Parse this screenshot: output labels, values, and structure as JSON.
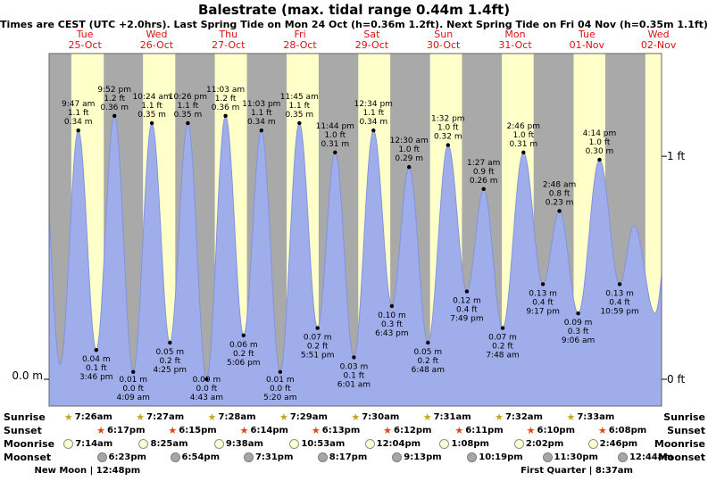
{
  "title": "Balestrate (max. tidal range 0.44m 1.4ft)",
  "subtitle": "Times are CEST (UTC +2.0hrs). Last Spring Tide on Mon 24 Oct (h=0.36m 1.2ft). Next Spring Tide on Fri 04 Nov (h=0.35m 1.1ft)",
  "axis": {
    "left": "0.0 m",
    "right_top": "1 ft",
    "right_bottom": "0 ft"
  },
  "colors": {
    "day_band": "#ffffc9",
    "night_band": "#a9a9a9",
    "tide_fill": "#9fadea",
    "tide_stroke": "#8095dd",
    "date_red": "#dd1111",
    "text": "#000000"
  },
  "days": [
    {
      "weekday": "Tue",
      "date": "25-Oct"
    },
    {
      "weekday": "Wed",
      "date": "26-Oct"
    },
    {
      "weekday": "Thu",
      "date": "27-Oct"
    },
    {
      "weekday": "Fri",
      "date": "28-Oct"
    },
    {
      "weekday": "Sat",
      "date": "29-Oct"
    },
    {
      "weekday": "Sun",
      "date": "30-Oct"
    },
    {
      "weekday": "Mon",
      "date": "31-Oct"
    },
    {
      "weekday": "Tue",
      "date": "01-Nov"
    },
    {
      "weekday": "Wed",
      "date": "02-Nov"
    }
  ],
  "chart_data": {
    "type": "area",
    "title": "Balestrate tide height curve",
    "ylabel_m": "0.0 m",
    "ylim_m": [
      0,
      0.44
    ],
    "window_hours": [
      0,
      205
    ],
    "tides": [
      {
        "day": "Tue 25-Oct",
        "type": "high",
        "time": "9:47 am",
        "height_m": "0.34",
        "height_ft": "1.1",
        "t": 9.78
      },
      {
        "day": "Tue 25-Oct",
        "type": "low",
        "time": "3:46 pm",
        "height_m": "0.04",
        "height_ft": "0.1",
        "t": 15.77
      },
      {
        "day": "Tue 25-Oct",
        "type": "high",
        "time": "9:52 pm",
        "height_m": "0.36",
        "height_ft": "1.2",
        "t": 21.87
      },
      {
        "day": "Wed 26-Oct",
        "type": "low",
        "time": "4:09 am",
        "height_m": "0.01",
        "height_ft": "0.0",
        "t": 28.15
      },
      {
        "day": "Wed 26-Oct",
        "type": "high",
        "time": "10:24 am",
        "height_m": "0.35",
        "height_ft": "1.1",
        "t": 34.4
      },
      {
        "day": "Wed 26-Oct",
        "type": "low",
        "time": "4:25 pm",
        "height_m": "0.05",
        "height_ft": "0.2",
        "t": 40.42
      },
      {
        "day": "Wed 26-Oct",
        "type": "high",
        "time": "10:26 pm",
        "height_m": "0.35",
        "height_ft": "1.1",
        "t": 46.43
      },
      {
        "day": "Thu 27-Oct",
        "type": "low",
        "time": "4:43 am",
        "height_m": "0.00",
        "height_ft": "0.0",
        "t": 52.72
      },
      {
        "day": "Thu 27-Oct",
        "type": "high",
        "time": "11:03 am",
        "height_m": "0.36",
        "height_ft": "1.2",
        "t": 59.05
      },
      {
        "day": "Thu 27-Oct",
        "type": "low",
        "time": "5:06 pm",
        "height_m": "0.06",
        "height_ft": "0.2",
        "t": 65.1
      },
      {
        "day": "Thu 27-Oct",
        "type": "high",
        "time": "11:03 pm",
        "height_m": "0.34",
        "height_ft": "1.1",
        "t": 71.05
      },
      {
        "day": "Fri 28-Oct",
        "type": "low",
        "time": "5:20 am",
        "height_m": "0.01",
        "height_ft": "0.0",
        "t": 77.33
      },
      {
        "day": "Fri 28-Oct",
        "type": "high",
        "time": "11:45 am",
        "height_m": "0.35",
        "height_ft": "1.1",
        "t": 83.75
      },
      {
        "day": "Fri 28-Oct",
        "type": "low",
        "time": "5:51 pm",
        "height_m": "0.07",
        "height_ft": "0.2",
        "t": 89.85
      },
      {
        "day": "Fri 28-Oct",
        "type": "high",
        "time": "11:44 pm",
        "height_m": "0.31",
        "height_ft": "1.0",
        "t": 95.73
      },
      {
        "day": "Sat 29-Oct",
        "type": "low",
        "time": "6:01 am",
        "height_m": "0.03",
        "height_ft": "0.1",
        "t": 102.02
      },
      {
        "day": "Sat 29-Oct",
        "type": "high",
        "time": "12:34 pm",
        "height_m": "0.34",
        "height_ft": "1.1",
        "t": 108.57
      },
      {
        "day": "Sat 29-Oct",
        "type": "low",
        "time": "6:43 pm",
        "height_m": "0.10",
        "height_ft": "0.3",
        "t": 114.72
      },
      {
        "day": "Sun 30-Oct",
        "type": "high",
        "time": "12:30 am",
        "height_m": "0.29",
        "height_ft": "1.0",
        "t": 120.5
      },
      {
        "day": "Sun 30-Oct",
        "type": "low",
        "time": "6:48 am",
        "height_m": "0.05",
        "height_ft": "0.2",
        "t": 126.8
      },
      {
        "day": "Sun 30-Oct",
        "type": "high",
        "time": "1:32 pm",
        "height_m": "0.32",
        "height_ft": "1.0",
        "t": 133.53
      },
      {
        "day": "Sun 30-Oct",
        "type": "low",
        "time": "7:49 pm",
        "height_m": "0.12",
        "height_ft": "0.4",
        "t": 139.82
      },
      {
        "day": "Mon 31-Oct",
        "type": "high",
        "time": "1:27 am",
        "height_m": "0.26",
        "height_ft": "0.9",
        "t": 145.45
      },
      {
        "day": "Mon 31-Oct",
        "type": "low",
        "time": "7:48 am",
        "height_m": "0.07",
        "height_ft": "0.2",
        "t": 151.8
      },
      {
        "day": "Mon 31-Oct",
        "type": "high",
        "time": "2:46 pm",
        "height_m": "0.31",
        "height_ft": "1.0",
        "t": 158.77
      },
      {
        "day": "Mon 31-Oct",
        "type": "low",
        "time": "9:17 pm",
        "height_m": "0.13",
        "height_ft": "0.4",
        "t": 165.28
      },
      {
        "day": "Tue 01-Nov",
        "type": "high",
        "time": "2:48 am",
        "height_m": "0.23",
        "height_ft": "0.8",
        "t": 170.8
      },
      {
        "day": "Tue 01-Nov",
        "type": "low",
        "time": "9:06 am",
        "height_m": "0.09",
        "height_ft": "0.3",
        "t": 177.1
      },
      {
        "day": "Tue 01-Nov",
        "type": "high",
        "time": "4:14 pm",
        "height_m": "0.30",
        "height_ft": "1.0",
        "t": 184.23
      },
      {
        "day": "Tue 01-Nov",
        "type": "low",
        "time": "10:59 pm",
        "height_m": "0.13",
        "height_ft": "0.4",
        "t": 190.98
      }
    ],
    "unlabeled_extremes_est": [
      {
        "t": -2.7,
        "h": 0.36
      },
      {
        "t": 3.7,
        "h": 0.02
      },
      {
        "t": 195.8,
        "h": 0.21
      },
      {
        "t": 202.8,
        "h": 0.09
      },
      {
        "t": 209.0,
        "h": 0.28
      }
    ],
    "extra_daylight_band": {
      "sunrise_t": 199.57,
      "sunset_t": 210.12
    }
  },
  "almanac": {
    "rows": [
      {
        "name": "Sunrise",
        "icon": "star-sunrise",
        "events": [
          {
            "time": "7:26am",
            "t": 7.43
          },
          {
            "time": "7:27am",
            "t": 31.45
          },
          {
            "time": "7:28am",
            "t": 55.47
          },
          {
            "time": "7:29am",
            "t": 79.48
          },
          {
            "time": "7:30am",
            "t": 103.5
          },
          {
            "time": "7:31am",
            "t": 127.52
          },
          {
            "time": "7:32am",
            "t": 151.53
          },
          {
            "time": "7:33am",
            "t": 175.55
          }
        ]
      },
      {
        "name": "Sunset",
        "icon": "star-sunset",
        "events": [
          {
            "time": "6:17pm",
            "t": 18.28
          },
          {
            "time": "6:15pm",
            "t": 42.25
          },
          {
            "time": "6:14pm",
            "t": 66.23
          },
          {
            "time": "6:13pm",
            "t": 90.22
          },
          {
            "time": "6:12pm",
            "t": 114.2
          },
          {
            "time": "6:11pm",
            "t": 138.18
          },
          {
            "time": "6:10pm",
            "t": 162.17
          },
          {
            "time": "6:08pm",
            "t": 186.13
          }
        ]
      },
      {
        "name": "Moonrise",
        "icon": "circle-moonrise",
        "events": [
          {
            "time": "7:14am",
            "t": 7.23
          },
          {
            "time": "8:25am",
            "t": 32.42
          },
          {
            "time": "9:38am",
            "t": 57.63
          },
          {
            "time": "10:53am",
            "t": 82.88
          },
          {
            "time": "12:04pm",
            "t": 108.07
          },
          {
            "time": "1:08pm",
            "t": 133.13
          },
          {
            "time": "2:02pm",
            "t": 158.03
          },
          {
            "time": "2:46pm",
            "t": 182.77
          }
        ]
      },
      {
        "name": "Moonset",
        "icon": "circle-moonset",
        "events": [
          {
            "time": "6:23pm",
            "t": 18.38
          },
          {
            "time": "6:54pm",
            "t": 42.9
          },
          {
            "time": "7:31pm",
            "t": 67.52
          },
          {
            "time": "8:17pm",
            "t": 92.28
          },
          {
            "time": "9:13pm",
            "t": 117.22
          },
          {
            "time": "10:19pm",
            "t": 142.32
          },
          {
            "time": "11:30pm",
            "t": 167.5
          },
          {
            "time": "12:44am",
            "t": 192.73
          }
        ]
      }
    ],
    "phases": [
      {
        "label": "New Moon | 12:48pm",
        "t": 12.8
      },
      {
        "label": "First Quarter | 8:37am",
        "t": 176.62
      }
    ]
  }
}
